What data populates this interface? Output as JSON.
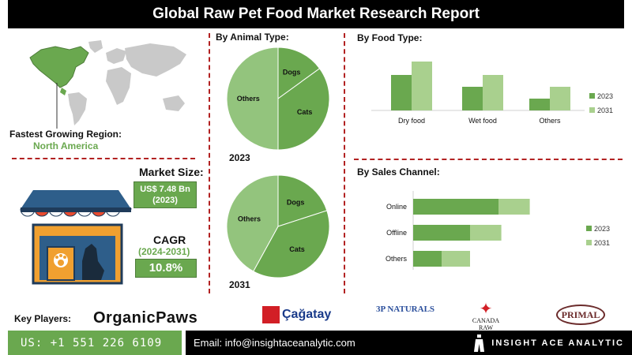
{
  "header": {
    "title": "Global Raw Pet Food Market Research Report"
  },
  "region": {
    "label": "Fastest Growing Region:",
    "value": "North America"
  },
  "market_size": {
    "label": "Market Size:",
    "value": "US$ 7.48 Bn",
    "year": "(2023)"
  },
  "cagr": {
    "label": "CAGR",
    "period": "(2024-2031)",
    "value": "10.8%"
  },
  "animal_type": {
    "title": "By Animal Type:"
  },
  "food_type": {
    "title": "By Food Type:"
  },
  "sales_channel": {
    "title": "By Sales Channel:"
  },
  "colors": {
    "dark_green": "#6aa84f",
    "light_green": "#a9d08e",
    "divider_red": "#b22222",
    "black": "#000000"
  },
  "chart_data": [
    {
      "type": "pie",
      "title": "2023",
      "labels": [
        "Dogs",
        "Cats",
        "Others"
      ],
      "values": [
        15,
        35,
        50
      ]
    },
    {
      "type": "pie",
      "title": "2031",
      "labels": [
        "Dogs",
        "Cats",
        "Others"
      ],
      "values": [
        20,
        38,
        42
      ]
    },
    {
      "type": "bar",
      "title": "By Food Type:",
      "categories": [
        "Dry food",
        "Wet food",
        "Others"
      ],
      "series": [
        {
          "name": "2023",
          "values": [
            45,
            30,
            15
          ]
        },
        {
          "name": "2031",
          "values": [
            62,
            45,
            30
          ]
        }
      ],
      "legend": "right"
    },
    {
      "type": "bar",
      "orientation": "horizontal",
      "stacked": true,
      "title": "By Sales Channel:",
      "categories": [
        "Online",
        "Offline",
        "Others"
      ],
      "series": [
        {
          "name": "2023",
          "values": [
            60,
            40,
            20
          ]
        },
        {
          "name": "2031",
          "values": [
            82,
            62,
            40
          ]
        }
      ],
      "legend": "right"
    }
  ],
  "key_players": {
    "label": "Key Players:",
    "logos": [
      "OrganicPaws",
      "Çağatay",
      "3P NATURALS",
      "CANADA RAW",
      "PRIMAL"
    ]
  },
  "footer": {
    "phone": "US: +1 551 226 6109",
    "email": "Email: info@insightaceanalytic.com",
    "brand": "INSIGHT ACE ANALYTIC"
  }
}
